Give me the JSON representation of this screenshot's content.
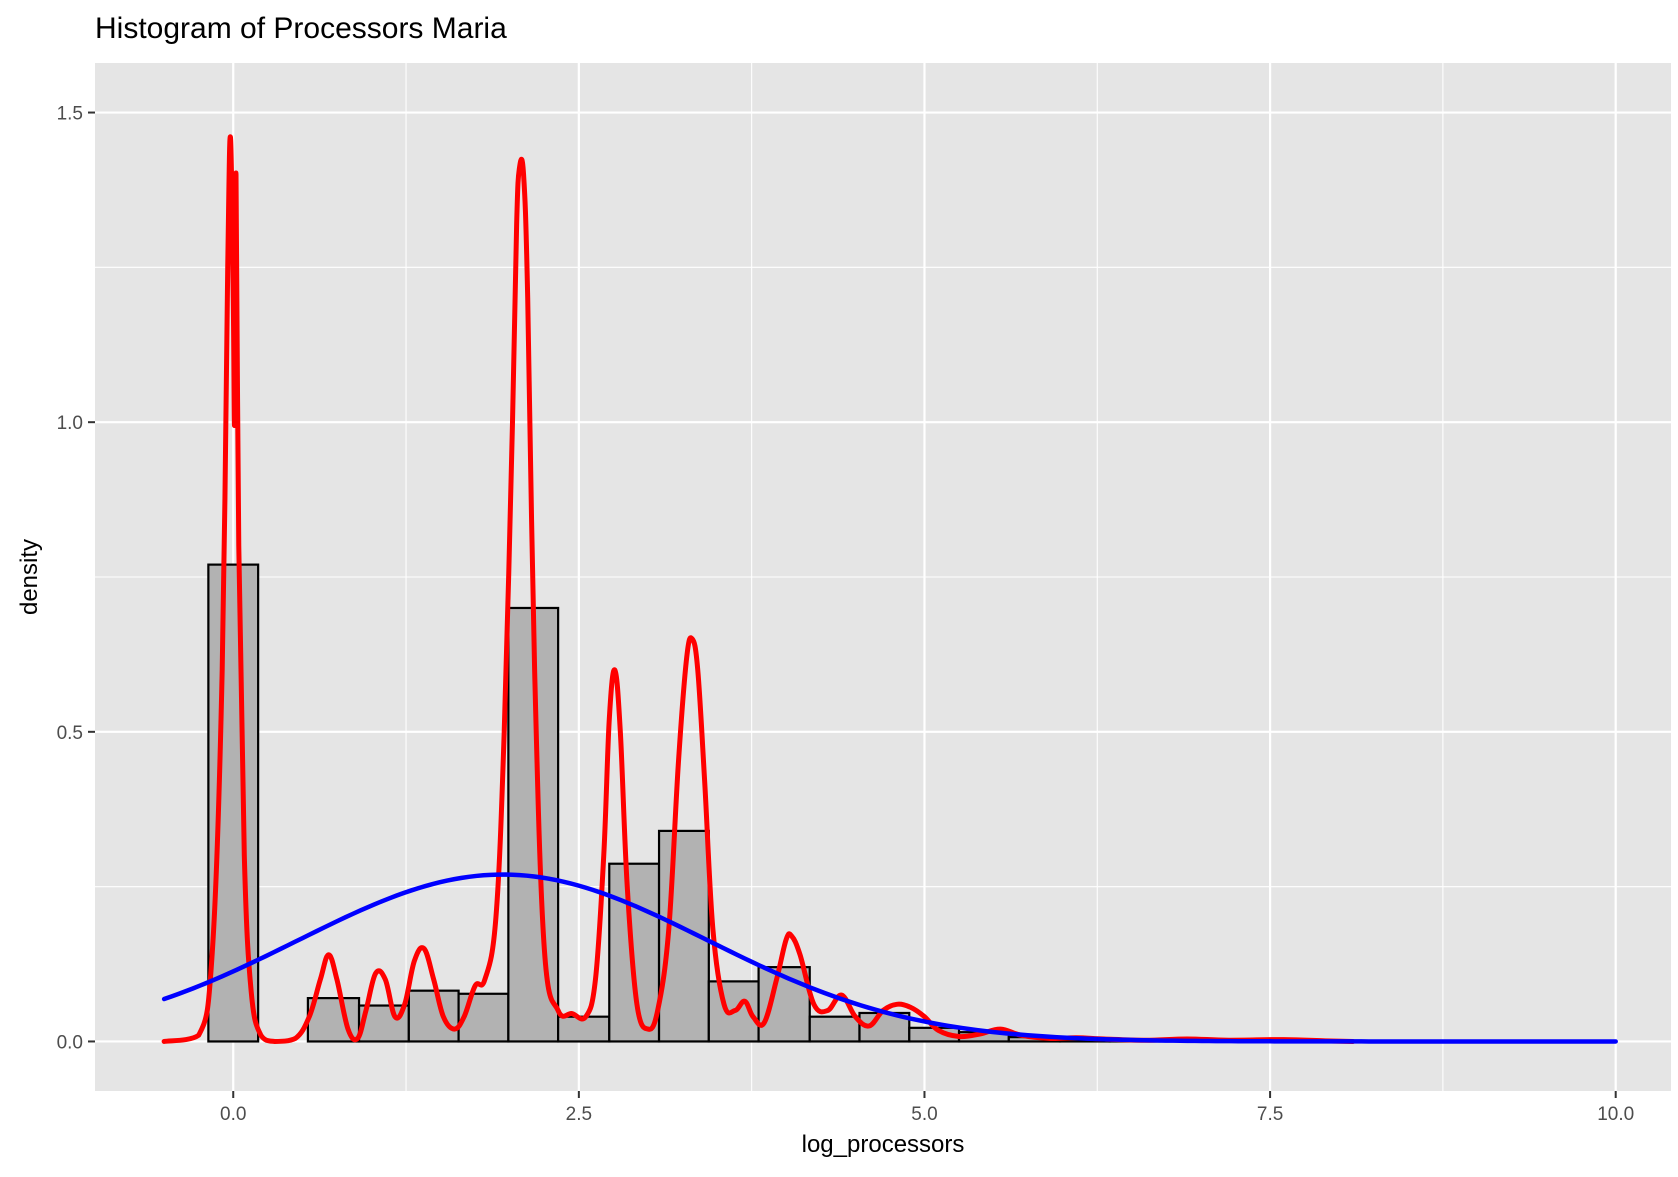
{
  "chart_data": {
    "type": "bar",
    "title": "Histogram of Processors Maria",
    "xlabel": "log_processors",
    "ylabel": "density",
    "xlim": [
      -1.0,
      10.4
    ],
    "ylim": [
      -0.08,
      1.58
    ],
    "x_ticks": [
      0.0,
      2.5,
      5.0,
      7.5,
      10.0
    ],
    "x_tick_labels": [
      "0.0",
      "2.5",
      "5.0",
      "7.5",
      "10.0"
    ],
    "y_ticks": [
      0.0,
      0.5,
      1.0,
      1.5
    ],
    "y_tick_labels": [
      "0.0",
      "0.5",
      "1.0",
      "1.5"
    ],
    "grid": true,
    "background": "#e5e5e5",
    "histogram": {
      "fill": "#b2b2b2",
      "outline": "#000000",
      "bins": [
        {
          "x0": -0.18,
          "x1": 0.18,
          "density": 0.77
        },
        {
          "x0": 0.18,
          "x1": 0.54,
          "density": 0.0
        },
        {
          "x0": 0.54,
          "x1": 0.91,
          "density": 0.07
        },
        {
          "x0": 0.91,
          "x1": 1.27,
          "density": 0.058
        },
        {
          "x0": 1.27,
          "x1": 1.63,
          "density": 0.082
        },
        {
          "x0": 1.63,
          "x1": 1.99,
          "density": 0.077
        },
        {
          "x0": 1.99,
          "x1": 2.35,
          "density": 0.7
        },
        {
          "x0": 2.35,
          "x1": 2.72,
          "density": 0.04
        },
        {
          "x0": 2.72,
          "x1": 3.08,
          "density": 0.287
        },
        {
          "x0": 3.08,
          "x1": 3.44,
          "density": 0.34
        },
        {
          "x0": 3.44,
          "x1": 3.8,
          "density": 0.097
        },
        {
          "x0": 3.8,
          "x1": 4.17,
          "density": 0.12
        },
        {
          "x0": 4.17,
          "x1": 4.53,
          "density": 0.04
        },
        {
          "x0": 4.53,
          "x1": 4.89,
          "density": 0.046
        },
        {
          "x0": 4.89,
          "x1": 5.25,
          "density": 0.022
        },
        {
          "x0": 5.25,
          "x1": 5.61,
          "density": 0.015
        },
        {
          "x0": 5.61,
          "x1": 5.98,
          "density": 0.007
        },
        {
          "x0": 5.98,
          "x1": 6.34,
          "density": 0.004
        },
        {
          "x0": 6.34,
          "x1": 6.7,
          "density": 0.002
        }
      ]
    },
    "series": [
      {
        "kind": "kernel-density",
        "color": "#ff0000",
        "x": [
          -0.5,
          -0.25,
          -0.15,
          -0.08,
          -0.04,
          -0.02,
          0.0,
          0.01,
          0.02,
          0.04,
          0.08,
          0.13,
          0.2,
          0.3,
          0.45,
          0.55,
          0.63,
          0.69,
          0.75,
          0.83,
          0.9,
          0.96,
          1.03,
          1.1,
          1.17,
          1.24,
          1.31,
          1.38,
          1.45,
          1.52,
          1.6,
          1.67,
          1.75,
          1.82,
          1.9,
          1.96,
          2.02,
          2.05,
          2.07,
          2.1,
          2.13,
          2.18,
          2.25,
          2.35,
          2.45,
          2.55,
          2.62,
          2.68,
          2.72,
          2.76,
          2.8,
          2.85,
          2.92,
          3.0,
          3.07,
          3.15,
          3.22,
          3.28,
          3.32,
          3.36,
          3.41,
          3.47,
          3.55,
          3.63,
          3.7,
          3.76,
          3.84,
          3.93,
          4.0,
          4.04,
          4.1,
          4.2,
          4.3,
          4.4,
          4.5,
          4.6,
          4.7,
          4.8,
          4.9,
          5.0,
          5.1,
          5.25,
          5.4,
          5.55,
          5.7,
          5.9,
          6.1,
          6.3,
          6.6,
          6.9,
          7.2,
          7.6,
          7.9,
          8.1
        ],
        "y": [
          0.0,
          0.01,
          0.15,
          0.6,
          1.25,
          1.46,
          1.2,
          1.0,
          1.4,
          0.8,
          0.3,
          0.08,
          0.01,
          0.0,
          0.005,
          0.04,
          0.1,
          0.14,
          0.1,
          0.02,
          0.005,
          0.05,
          0.11,
          0.1,
          0.04,
          0.06,
          0.13,
          0.15,
          0.1,
          0.04,
          0.02,
          0.04,
          0.09,
          0.1,
          0.2,
          0.5,
          1.0,
          1.32,
          1.41,
          1.4,
          1.2,
          0.6,
          0.15,
          0.05,
          0.045,
          0.04,
          0.1,
          0.3,
          0.52,
          0.6,
          0.5,
          0.25,
          0.06,
          0.02,
          0.05,
          0.18,
          0.45,
          0.62,
          0.65,
          0.6,
          0.42,
          0.18,
          0.06,
          0.05,
          0.065,
          0.04,
          0.03,
          0.1,
          0.165,
          0.17,
          0.14,
          0.06,
          0.05,
          0.075,
          0.04,
          0.025,
          0.05,
          0.06,
          0.055,
          0.04,
          0.018,
          0.008,
          0.012,
          0.02,
          0.01,
          0.005,
          0.006,
          0.004,
          0.002,
          0.004,
          0.002,
          0.003,
          0.001,
          0.0
        ]
      },
      {
        "kind": "normal-curve",
        "color": "#0000ff",
        "mean": 1.95,
        "sd": 1.48,
        "x_range": [
          -0.5,
          10.0
        ]
      }
    ]
  }
}
